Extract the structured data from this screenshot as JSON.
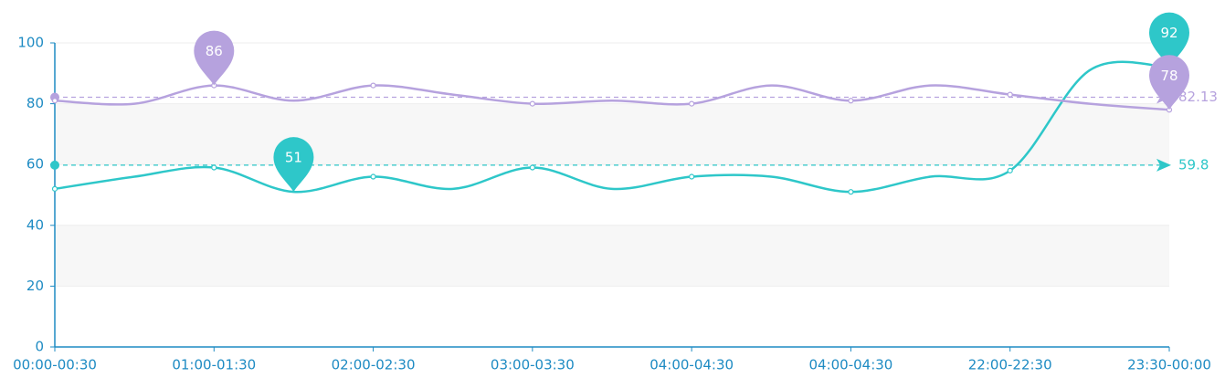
{
  "chart_data": {
    "type": "line",
    "categories": [
      "00:00-00:30",
      null,
      "01:00-01:30",
      null,
      "02:00-02:30",
      null,
      "03:00-03:30",
      null,
      "04:00-04:30",
      null,
      "04:00-04:30",
      null,
      "22:00-22:30",
      null,
      "23:30-00:00"
    ],
    "series": [
      {
        "color": "#2ec7c9",
        "values": [
          52,
          56,
          59,
          51,
          56,
          52,
          59,
          52,
          56,
          56,
          51,
          56,
          58,
          91,
          92
        ],
        "average": 59.8,
        "mark_points": [
          "max",
          "min"
        ]
      },
      {
        "color": "#b6a2de",
        "values": [
          81,
          80,
          86,
          81,
          86,
          83,
          80,
          81,
          80,
          86,
          81,
          86,
          83,
          80,
          78
        ],
        "average": 82.13,
        "mark_points": [
          "max",
          "min"
        ]
      }
    ],
    "ylim": [
      0,
      100
    ],
    "yticks": [
      0,
      20,
      40,
      60,
      80,
      100
    ],
    "axis_color": "#1e8bc3",
    "split_area": true,
    "smooth": true
  }
}
